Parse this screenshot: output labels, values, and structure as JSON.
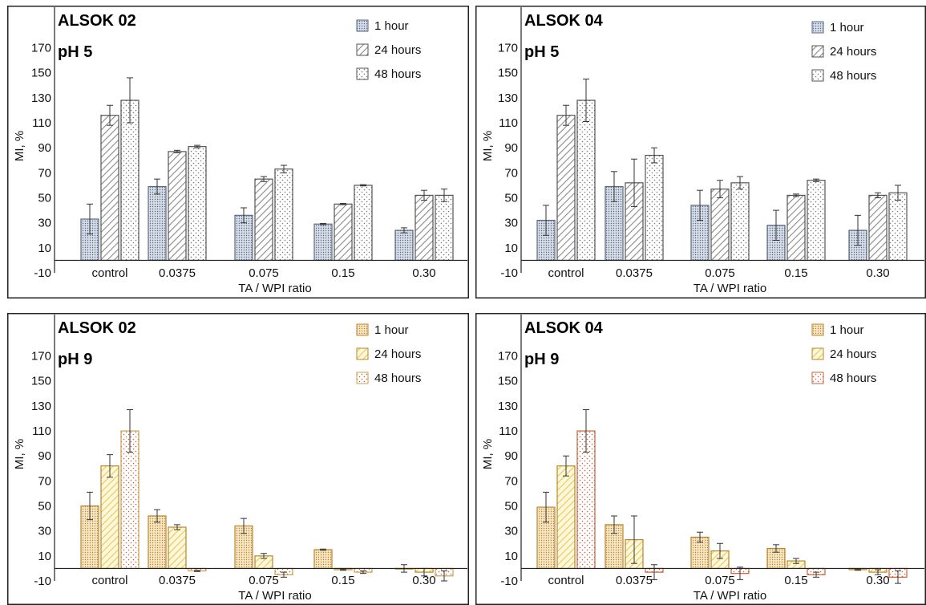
{
  "chart_data": [
    {
      "type": "bar",
      "title": "ALSOK 02",
      "subtitle": "pH 5",
      "xlabel": "TA / WPI ratio",
      "ylabel": "MI, %",
      "ylim": [
        -10,
        180
      ],
      "yticks": [
        -10,
        10,
        30,
        50,
        70,
        90,
        110,
        130,
        150,
        170
      ],
      "categories": [
        "control",
        "0.0375",
        "0.075",
        "0.15",
        "0.30"
      ],
      "legend_position": "top-right",
      "grid": false,
      "series": [
        {
          "name": "1 hour",
          "values": [
            33,
            59,
            36,
            29,
            24
          ],
          "errors": [
            12,
            6,
            6,
            0.5,
            2
          ],
          "color": "#5a6a80",
          "fill": "#d6dde8",
          "pattern": "dots-dense"
        },
        {
          "name": "24 hours",
          "values": [
            116,
            87,
            65,
            45,
            52
          ],
          "errors": [
            8,
            1,
            2,
            0.5,
            4
          ],
          "color": "#555555",
          "fill": "#ffffff",
          "pattern": "diagonal"
        },
        {
          "name": "48 hours",
          "values": [
            128,
            91,
            73,
            60,
            52
          ],
          "errors": [
            18,
            1,
            3,
            0.5,
            5
          ],
          "color": "#555555",
          "fill": "#ffffff",
          "pattern": "dots-sparse"
        }
      ]
    },
    {
      "type": "bar",
      "title": "ALSOK 04",
      "subtitle": "pH 5",
      "xlabel": "TA / WPI ratio",
      "ylabel": "MI, %",
      "ylim": [
        -10,
        180
      ],
      "yticks": [
        -10,
        10,
        30,
        50,
        70,
        90,
        110,
        130,
        150,
        170
      ],
      "categories": [
        "control",
        "0.0375",
        "0.075",
        "0.15",
        "0.30"
      ],
      "legend_position": "top-right",
      "grid": false,
      "series": [
        {
          "name": "1 hour",
          "values": [
            32,
            59,
            44,
            28,
            24
          ],
          "errors": [
            12,
            12,
            12,
            12,
            12
          ],
          "color": "#5a6a80",
          "fill": "#d6dde8",
          "pattern": "dots-dense"
        },
        {
          "name": "24 hours",
          "values": [
            116,
            62,
            57,
            52,
            52
          ],
          "errors": [
            8,
            19,
            7,
            1,
            2
          ],
          "color": "#555555",
          "fill": "#ffffff",
          "pattern": "diagonal"
        },
        {
          "name": "48 hours",
          "values": [
            128,
            84,
            62,
            64,
            54
          ],
          "errors": [
            17,
            6,
            5,
            1,
            6
          ],
          "color": "#555555",
          "fill": "#ffffff",
          "pattern": "dots-sparse"
        }
      ]
    },
    {
      "type": "bar",
      "title": "ALSOK 02",
      "subtitle": "pH 9",
      "xlabel": "TA / WPI ratio",
      "ylabel": "MI, %",
      "ylim": [
        -10,
        180
      ],
      "yticks": [
        -10,
        10,
        30,
        50,
        70,
        90,
        110,
        130,
        150,
        170
      ],
      "categories": [
        "control",
        "0.0375",
        "0.075",
        "0.15",
        "0.30"
      ],
      "legend_position": "top-right",
      "grid": false,
      "series": [
        {
          "name": "1 hour",
          "values": [
            50,
            42,
            34,
            15,
            0
          ],
          "errors": [
            11,
            5,
            6,
            0.5,
            3
          ],
          "color": "#b8862f",
          "fill": "#f7e6c4",
          "pattern": "dots-dense"
        },
        {
          "name": "24 hours",
          "values": [
            82,
            33,
            10,
            -1,
            -3
          ],
          "errors": [
            9,
            2,
            2,
            0.5,
            3
          ],
          "color": "#b8862f",
          "fill": "#fff8dc",
          "pattern": "diagonal-yellow"
        },
        {
          "name": "48 hours",
          "values": [
            110,
            -2,
            -5,
            -3,
            -6
          ],
          "errors": [
            17,
            0.5,
            2,
            1,
            4
          ],
          "color": "#c8a050",
          "fill": "#ffffff",
          "pattern": "dots-sparse-red"
        }
      ]
    },
    {
      "type": "bar",
      "title": "ALSOK 04",
      "subtitle": "pH 9",
      "xlabel": "TA / WPI ratio",
      "ylabel": "MI, %",
      "ylim": [
        -10,
        180
      ],
      "yticks": [
        -10,
        10,
        30,
        50,
        70,
        90,
        110,
        130,
        150,
        170
      ],
      "categories": [
        "control",
        "0.0375",
        "0.075",
        "0.15",
        "0.30"
      ],
      "legend_position": "top-right",
      "grid": false,
      "series": [
        {
          "name": "1 hour",
          "values": [
            49,
            35,
            25,
            16,
            -1
          ],
          "errors": [
            12,
            7,
            4,
            3,
            0.5
          ],
          "color": "#b8862f",
          "fill": "#f7e6c4",
          "pattern": "dots-dense"
        },
        {
          "name": "24 hours",
          "values": [
            82,
            23,
            14,
            6,
            -3
          ],
          "errors": [
            8,
            19,
            6,
            2,
            2
          ],
          "color": "#b8862f",
          "fill": "#fff8dc",
          "pattern": "diagonal-yellow"
        },
        {
          "name": "48 hours",
          "values": [
            110,
            -3,
            -4,
            -5,
            -7
          ],
          "errors": [
            17,
            6,
            5,
            2,
            5
          ],
          "color": "#c8623a",
          "fill": "#ffffff",
          "pattern": "dots-sparse-red"
        }
      ]
    }
  ]
}
